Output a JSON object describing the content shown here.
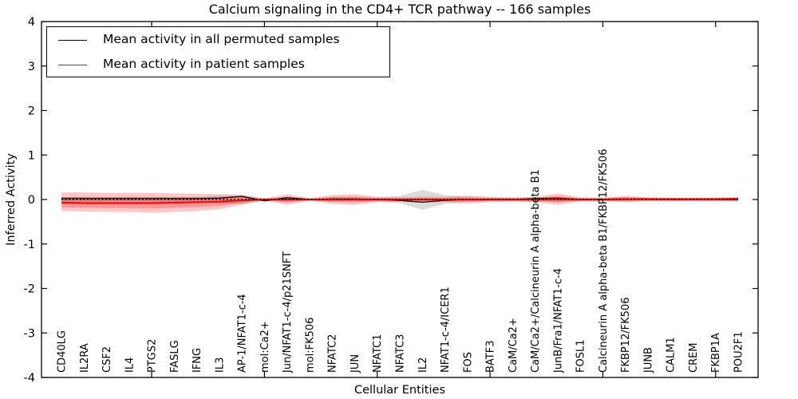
{
  "figure": {
    "title": "Calcium signaling in the CD4+ TCR pathway -- 166 samples",
    "xlabel": "Cellular Entities",
    "ylabel": "Inferred Activity"
  },
  "legend": {
    "entries": [
      {
        "label": "Mean activity in all permuted samples",
        "color": "#000000"
      },
      {
        "label": "Mean activity in patient samples",
        "color": "#ff0000"
      }
    ],
    "position": "upper left"
  },
  "chart_data": {
    "type": "line",
    "title": "Calcium signaling in the CD4+ TCR pathway -- 166 samples",
    "xlabel": "Cellular Entities",
    "ylabel": "Inferred Activity",
    "ylim": [
      -4,
      4
    ],
    "y_ticks": [
      -4,
      -3,
      -2,
      -1,
      0,
      1,
      2,
      3,
      4
    ],
    "x_tick_label_rotation": 90,
    "x_major_tick_indices": [
      4,
      9,
      14,
      19,
      24,
      29
    ],
    "grid": false,
    "legend_position": "upper left",
    "categories": [
      "CD40LG",
      "IL2RA",
      "CSF2",
      "IL4",
      "PTGS2",
      "FASLG",
      "IFNG",
      "IL3",
      "AP-1/NFAT1-c-4",
      "mol:Ca2+",
      "Jun/NFAT1-c-4/p21SNFT",
      "mol:FK506",
      "NFATC2",
      "JUN",
      "NFATC1",
      "NFATC3",
      "IL2",
      "NFAT1-c-4/ICER1",
      "FOS",
      "BATF3",
      "CaM/Ca2+",
      "CaM/Ca2+/Calcineurin A alpha-beta B1",
      "JunB/Fra1/NFAT1-c-4",
      "FOSL1",
      "Calcineurin A alpha-beta B1/FKBP12/FK506",
      "FKBP12/FK506",
      "JUNB",
      "CALM1",
      "CREM",
      "FKBP1A",
      "POU2F1"
    ],
    "series": [
      {
        "name": "Mean activity in all permuted samples",
        "color": "#000000",
        "values": [
          0.02,
          0.02,
          0.02,
          0.02,
          0.02,
          0.02,
          0.02,
          0.03,
          0.07,
          -0.03,
          0.04,
          0.0,
          0.01,
          0.01,
          0.0,
          -0.02,
          -0.06,
          -0.02,
          0.0,
          0.0,
          0.0,
          0.02,
          0.03,
          0.0,
          0.0,
          0.01,
          0.0,
          0.0,
          0.0,
          0.0,
          0.0
        ],
        "band": {
          "color": "#999999",
          "upper": [
            0.06,
            0.06,
            0.06,
            0.06,
            0.06,
            0.06,
            0.06,
            0.09,
            0.1,
            0.03,
            0.05,
            0.03,
            0.05,
            0.05,
            0.05,
            0.08,
            0.22,
            0.1,
            0.05,
            0.04,
            0.04,
            0.05,
            0.05,
            0.04,
            0.04,
            0.05,
            0.04,
            0.04,
            0.04,
            0.04,
            0.05
          ],
          "lower": [
            -0.06,
            -0.06,
            -0.06,
            -0.06,
            -0.06,
            -0.06,
            -0.06,
            -0.09,
            -0.1,
            -0.03,
            -0.05,
            -0.03,
            -0.05,
            -0.05,
            -0.05,
            -0.08,
            -0.23,
            -0.1,
            -0.05,
            -0.04,
            -0.04,
            -0.05,
            -0.05,
            -0.04,
            -0.04,
            -0.05,
            -0.04,
            -0.04,
            -0.04,
            -0.04,
            -0.05
          ]
        }
      },
      {
        "name": "Mean activity in patient samples",
        "color": "#ff0000",
        "values": [
          -0.07,
          -0.08,
          -0.08,
          -0.08,
          -0.08,
          -0.07,
          -0.06,
          -0.05,
          -0.02,
          0.0,
          0.0,
          0.0,
          0.0,
          0.0,
          0.0,
          0.0,
          0.0,
          0.0,
          0.0,
          0.0,
          0.0,
          0.0,
          0.01,
          0.0,
          0.0,
          0.01,
          0.01,
          0.01,
          0.01,
          0.01,
          0.02
        ],
        "band": {
          "color": "#ff0000",
          "upper": [
            0.16,
            0.16,
            0.15,
            0.15,
            0.15,
            0.14,
            0.13,
            0.12,
            0.1,
            0.02,
            0.12,
            0.03,
            0.1,
            0.12,
            0.06,
            0.05,
            0.06,
            0.06,
            0.09,
            0.06,
            0.05,
            0.06,
            0.14,
            0.05,
            0.04,
            0.08,
            0.05,
            0.04,
            0.04,
            0.04,
            0.04
          ],
          "lower": [
            -0.26,
            -0.27,
            -0.28,
            -0.28,
            -0.3,
            -0.28,
            -0.26,
            -0.22,
            -0.12,
            -0.02,
            -0.12,
            -0.03,
            -0.1,
            -0.12,
            -0.06,
            -0.05,
            -0.06,
            -0.06,
            -0.09,
            -0.06,
            -0.05,
            -0.06,
            -0.12,
            -0.05,
            -0.04,
            -0.06,
            -0.04,
            -0.04,
            -0.04,
            -0.04,
            -0.04
          ]
        }
      }
    ],
    "reference_line": {
      "y": 0,
      "style": "dotted",
      "color": "#000000"
    }
  }
}
